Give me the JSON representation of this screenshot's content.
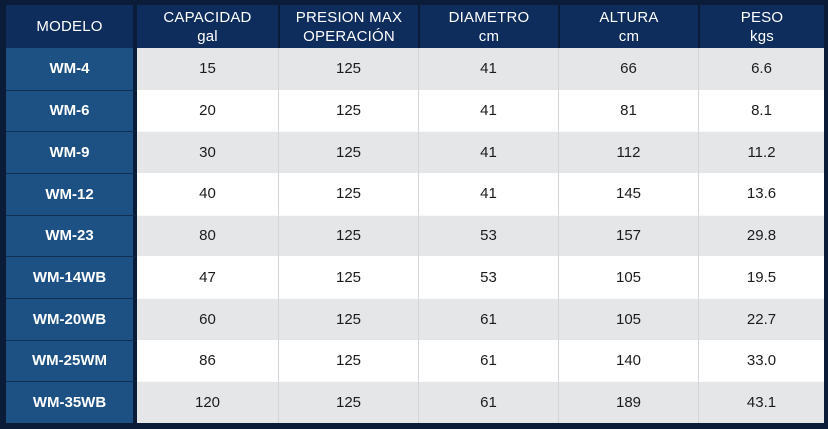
{
  "chart_data": {
    "type": "table",
    "title": "",
    "columns": [
      {
        "label": "MODELO",
        "sublabel": ""
      },
      {
        "label": "CAPACIDAD",
        "sublabel": "gal"
      },
      {
        "label": "PRESION MAX",
        "sublabel": "OPERACIÓN"
      },
      {
        "label": "DIAMETRO",
        "sublabel": "cm"
      },
      {
        "label": "ALTURA",
        "sublabel": "cm"
      },
      {
        "label": "PESO",
        "sublabel": "kgs"
      }
    ],
    "rows": [
      [
        "WM-4",
        "15",
        "125",
        "41",
        "66",
        "6.6"
      ],
      [
        "WM-6",
        "20",
        "125",
        "41",
        "81",
        "8.1"
      ],
      [
        "WM-9",
        "30",
        "125",
        "41",
        "112",
        "11.2"
      ],
      [
        "WM-12",
        "40",
        "125",
        "41",
        "145",
        "13.6"
      ],
      [
        "WM-23",
        "80",
        "125",
        "53",
        "157",
        "29.8"
      ],
      [
        "WM-14WB",
        "47",
        "125",
        "53",
        "105",
        "19.5"
      ],
      [
        "WM-20WB",
        "60",
        "125",
        "61",
        "105",
        "22.7"
      ],
      [
        "WM-25WM",
        "86",
        "125",
        "61",
        "140",
        "33.0"
      ],
      [
        "WM-35WB",
        "120",
        "125",
        "61",
        "189",
        "43.1"
      ]
    ]
  },
  "colors": {
    "frame": "#0a1c38",
    "header_bg": "#0e2d5c",
    "header_text": "#ffffff",
    "model_bg": "#1d5184",
    "model_text": "#ffffff",
    "row_gray": "#e5e6e8",
    "row_white": "#ffffff",
    "data_text": "#1c1c1c",
    "column_separator": "#d4d5d8"
  }
}
